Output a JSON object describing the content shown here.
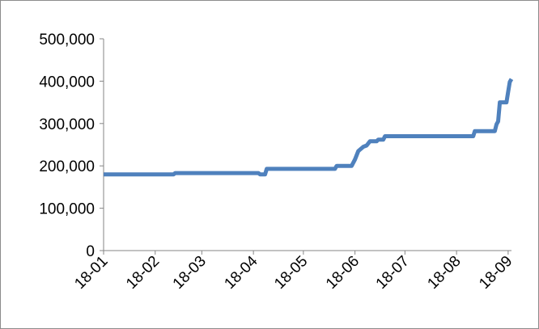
{
  "chart_data": {
    "type": "line",
    "title": "",
    "xlabel": "",
    "ylabel": "",
    "ylim": [
      0,
      500000
    ],
    "y_ticks": [
      "0",
      "100,000",
      "200,000",
      "300,000",
      "400,000",
      "500,000"
    ],
    "y_tick_values": [
      0,
      100000,
      200000,
      300000,
      400000,
      500000
    ],
    "x_ticks": [
      "18-01",
      "18-02",
      "18-03",
      "18-04",
      "18-05",
      "18-06",
      "18-07",
      "18-08",
      "18-09"
    ],
    "x_tick_values": [
      "2018-01-01",
      "2018-02-01",
      "2018-03-01",
      "2018-04-01",
      "2018-05-01",
      "2018-06-01",
      "2018-07-01",
      "2018-08-01",
      "2018-09-01"
    ],
    "xlim": [
      "2018-01-01",
      "2018-09-03"
    ],
    "grid": false,
    "legend": "none",
    "series": [
      {
        "color": "#4F81BD",
        "x": [
          "2018-01-01",
          "2018-02-12",
          "2018-02-13",
          "2018-04-04",
          "2018-04-05",
          "2018-04-08",
          "2018-04-09",
          "2018-05-20",
          "2018-05-21",
          "2018-05-30",
          "2018-06-01",
          "2018-06-03",
          "2018-06-06",
          "2018-06-08",
          "2018-06-10",
          "2018-06-14",
          "2018-06-15",
          "2018-06-18",
          "2018-06-19",
          "2018-08-11",
          "2018-08-12",
          "2018-08-24",
          "2018-08-25",
          "2018-08-26",
          "2018-08-27",
          "2018-08-31",
          "2018-09-01",
          "2018-09-02",
          "2018-09-03"
        ],
        "values": [
          180000,
          180000,
          183000,
          183000,
          180000,
          180000,
          193000,
          193000,
          200000,
          200000,
          215000,
          235000,
          245000,
          248000,
          258000,
          258000,
          262000,
          262000,
          270000,
          270000,
          282000,
          282000,
          298000,
          305000,
          350000,
          350000,
          375000,
          398000,
          405000
        ]
      }
    ]
  }
}
